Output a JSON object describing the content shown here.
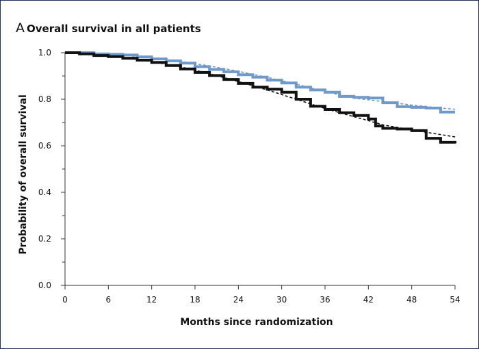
{
  "panel": {
    "letter": "A",
    "title": "Overall survival in all patients"
  },
  "colors": {
    "series_blue": "#6f99c9",
    "series_black": "#111111",
    "axis": "#333333",
    "frame": "#1f2e5a"
  },
  "chart_data": {
    "type": "line",
    "title": "Overall survival in all patients",
    "xlabel": "Months since randomization",
    "ylabel": "Probability of overall survival",
    "xlim": [
      0,
      54
    ],
    "ylim": [
      0,
      1.0
    ],
    "xticks": [
      0,
      6,
      12,
      18,
      24,
      30,
      36,
      42,
      48,
      54
    ],
    "xtick_labels": [
      "0",
      "6",
      "12",
      "18",
      "24",
      "30",
      "36",
      "42",
      "48",
      "54"
    ],
    "yticks": [
      0,
      0.2,
      0.4,
      0.6,
      0.8,
      1.0
    ],
    "ytick_labels": [
      "0.0",
      "0.2",
      "0.4",
      "0.6",
      "0.8",
      "1.0"
    ],
    "y_minor_ticks": [
      0.1,
      0.3,
      0.5,
      0.7,
      0.9
    ],
    "grid": false,
    "legend": "none",
    "series": [
      {
        "style": "step",
        "color": "#6f99c9",
        "x": [
          0,
          2,
          4,
          6,
          8,
          10,
          12,
          14,
          16,
          18,
          20,
          22,
          24,
          26,
          28,
          30,
          32,
          34,
          36,
          38,
          40,
          42,
          44,
          46,
          48,
          50,
          52,
          54
        ],
        "y": [
          1.0,
          1.0,
          0.995,
          0.993,
          0.99,
          0.982,
          0.973,
          0.965,
          0.955,
          0.94,
          0.928,
          0.918,
          0.905,
          0.895,
          0.882,
          0.87,
          0.852,
          0.84,
          0.83,
          0.812,
          0.808,
          0.805,
          0.785,
          0.768,
          0.765,
          0.762,
          0.745,
          0.745
        ]
      },
      {
        "style": "step",
        "color": "#111111",
        "x": [
          0,
          2,
          4,
          6,
          8,
          10,
          12,
          14,
          16,
          18,
          20,
          22,
          24,
          26,
          28,
          30,
          32,
          34,
          36,
          38,
          40,
          42,
          43,
          44,
          46,
          48,
          50,
          52,
          54
        ],
        "y": [
          1.0,
          0.995,
          0.988,
          0.983,
          0.976,
          0.968,
          0.958,
          0.945,
          0.93,
          0.915,
          0.902,
          0.885,
          0.868,
          0.852,
          0.843,
          0.83,
          0.8,
          0.77,
          0.756,
          0.742,
          0.73,
          0.715,
          0.685,
          0.675,
          0.672,
          0.665,
          0.632,
          0.615,
          0.61
        ]
      },
      {
        "style": "dashed",
        "color": "#6f99c9",
        "x": [
          0,
          4,
          8,
          12,
          16,
          20,
          24,
          28,
          32,
          36,
          40,
          44,
          48,
          52,
          54
        ],
        "y": [
          1.0,
          0.996,
          0.989,
          0.978,
          0.963,
          0.943,
          0.92,
          0.894,
          0.865,
          0.833,
          0.805,
          0.79,
          0.775,
          0.762,
          0.757
        ]
      },
      {
        "style": "dashed",
        "color": "#111111",
        "x": [
          0,
          4,
          8,
          12,
          16,
          20,
          24,
          28,
          32,
          36,
          40,
          42,
          44,
          48,
          52,
          54
        ],
        "y": [
          1.0,
          0.991,
          0.979,
          0.962,
          0.939,
          0.91,
          0.876,
          0.84,
          0.8,
          0.76,
          0.725,
          0.708,
          0.69,
          0.668,
          0.648,
          0.638
        ]
      }
    ]
  }
}
